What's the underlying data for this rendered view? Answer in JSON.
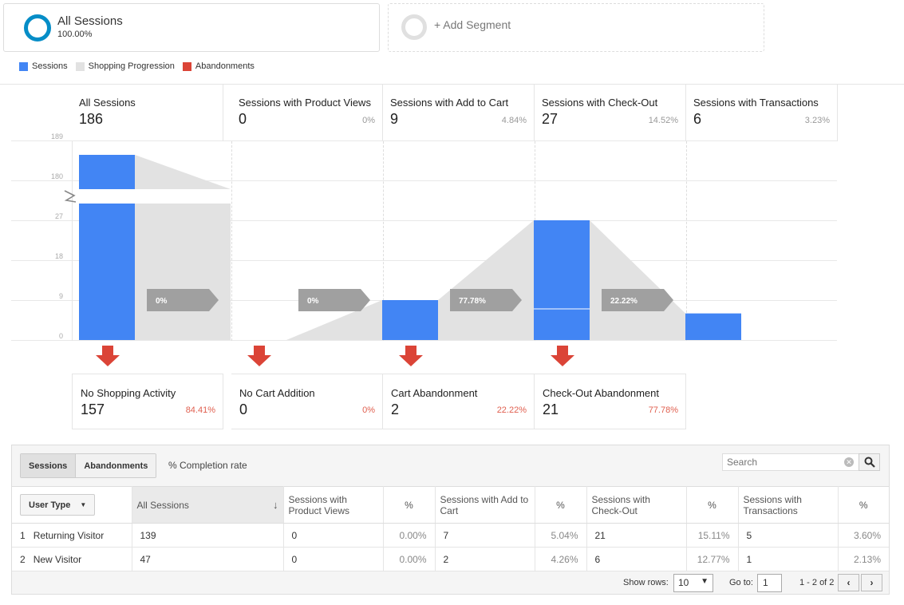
{
  "segments": {
    "all": {
      "title": "All Sessions",
      "pct": "100.00%"
    },
    "add": {
      "label": "+ Add Segment"
    }
  },
  "legend": [
    {
      "label": "Sessions",
      "color": "#4285f4"
    },
    {
      "label": "Shopping Progression",
      "color": "#e2e2e2"
    },
    {
      "label": "Abandonments",
      "color": "#db4437"
    }
  ],
  "chart_data": {
    "type": "bar",
    "title": "",
    "categories": [
      "All Sessions",
      "Sessions with Product Views",
      "Sessions with Add to Cart",
      "Sessions with Check-Out",
      "Sessions with Transactions"
    ],
    "series": [
      {
        "name": "Sessions",
        "values": [
          186,
          0,
          9,
          27,
          6
        ]
      }
    ],
    "y_ticks": [
      "0",
      "9",
      "18",
      "27",
      "180",
      "189"
    ],
    "y_axis_break": true,
    "ylim": [
      0,
      189
    ],
    "progression_rates": [
      "0%",
      "0%",
      "77.78%",
      "22.22%"
    ],
    "grid": true
  },
  "stages": [
    {
      "title": "All Sessions",
      "value": "186",
      "pct": ""
    },
    {
      "title": "Sessions with Product Views",
      "value": "0",
      "pct": "0%"
    },
    {
      "title": "Sessions with Add to Cart",
      "value": "9",
      "pct": "4.84%"
    },
    {
      "title": "Sessions with Check-Out",
      "value": "27",
      "pct": "14.52%"
    },
    {
      "title": "Sessions with Transactions",
      "value": "6",
      "pct": "3.23%"
    }
  ],
  "abandonments": [
    {
      "title": "No Shopping Activity",
      "value": "157",
      "pct": "84.41%"
    },
    {
      "title": "No Cart Addition",
      "value": "0",
      "pct": "0%"
    },
    {
      "title": "Cart Abandonment",
      "value": "2",
      "pct": "22.22%"
    },
    {
      "title": "Check-Out Abandonment",
      "value": "21",
      "pct": "77.78%"
    }
  ],
  "table": {
    "tabs": [
      "Sessions",
      "Abandonments"
    ],
    "completion_label": "% Completion rate",
    "search_placeholder": "Search",
    "dimension_label": "User Type",
    "columns": [
      "All Sessions",
      "Sessions with Product Views",
      "%",
      "Sessions with Add to Cart",
      "%",
      "Sessions with Check-Out",
      "%",
      "Sessions with Transactions",
      "%"
    ],
    "rows": [
      {
        "index": "1",
        "user_type": "Returning Visitor",
        "cells": [
          "139",
          "0",
          "0.00%",
          "7",
          "5.04%",
          "21",
          "15.11%",
          "5",
          "3.60%"
        ]
      },
      {
        "index": "2",
        "user_type": "New Visitor",
        "cells": [
          "47",
          "0",
          "0.00%",
          "2",
          "4.26%",
          "6",
          "12.77%",
          "1",
          "2.13%"
        ]
      }
    ],
    "pager": {
      "show_rows_label": "Show rows:",
      "rows_value": "10",
      "goto_label": "Go to:",
      "goto_value": "1",
      "range": "1 - 2 of 2"
    }
  }
}
